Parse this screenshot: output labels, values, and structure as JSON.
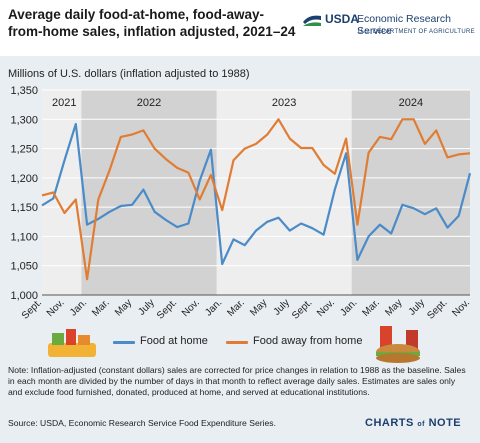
{
  "header": {
    "title": "Average daily food-at-home, food-away-from-home sales, inflation adjusted, 2021–24",
    "logo_usda": "USDA",
    "logo_ers": "Economic Research Service",
    "logo_dept": "U.S. DEPARTMENT OF AGRICULTURE"
  },
  "chart_data": {
    "type": "line",
    "ylabel": "Millions of U.S. dollars (inflation adjusted to 1988)",
    "ylim": [
      1000,
      1350
    ],
    "yticks": [
      "1,000",
      "1,050",
      "1,100",
      "1,150",
      "1,200",
      "1,250",
      "1,300",
      "1,350"
    ],
    "x_months": [
      "Sep 2021",
      "Oct 2021",
      "Nov 2021",
      "Dec 2021",
      "Jan 2022",
      "Feb 2022",
      "Mar 2022",
      "Apr 2022",
      "May 2022",
      "Jun 2022",
      "Jul 2022",
      "Aug 2022",
      "Sep 2022",
      "Oct 2022",
      "Nov 2022",
      "Dec 2022",
      "Jan 2023",
      "Feb 2023",
      "Mar 2023",
      "Apr 2023",
      "May 2023",
      "Jun 2023",
      "Jul 2023",
      "Aug 2023",
      "Sep 2023",
      "Oct 2023",
      "Nov 2023",
      "Dec 2023",
      "Jan 2024",
      "Feb 2024",
      "Mar 2024",
      "Apr 2024",
      "May 2024",
      "Jun 2024",
      "Jul 2024",
      "Aug 2024",
      "Sep 2024",
      "Oct 2024",
      "Nov 2024"
    ],
    "tick_labels": [
      "Sept.",
      "Nov.",
      "Jan.",
      "Mar.",
      "May",
      "July",
      "Sept.",
      "Nov.",
      "Jan.",
      "Mar.",
      "May",
      "July",
      "Sept.",
      "Nov.",
      "Jan.",
      "Mar.",
      "May",
      "July",
      "Sept.",
      "Nov."
    ],
    "year_bands": [
      {
        "label": "2021",
        "shaded": false
      },
      {
        "label": "2022",
        "shaded": true
      },
      {
        "label": "2023",
        "shaded": false
      },
      {
        "label": "2024",
        "shaded": true
      }
    ],
    "series": [
      {
        "name": "Food at home",
        "color": "#4b8bc7",
        "values": [
          1153,
          1165,
          1230,
          1292,
          1120,
          1130,
          1142,
          1152,
          1154,
          1180,
          1142,
          1128,
          1116,
          1122,
          1195,
          1248,
          1053,
          1095,
          1085,
          1110,
          1125,
          1132,
          1110,
          1122,
          1114,
          1103,
          1180,
          1242,
          1060,
          1100,
          1120,
          1105,
          1154,
          1148,
          1138,
          1148,
          1115,
          1135,
          1208
        ]
      },
      {
        "name": "Food away from home",
        "color": "#e07d35",
        "values": [
          1170,
          1175,
          1140,
          1163,
          1027,
          1163,
          1213,
          1270,
          1274,
          1281,
          1250,
          1232,
          1217,
          1209,
          1163,
          1205,
          1145,
          1230,
          1250,
          1258,
          1274,
          1300,
          1267,
          1251,
          1251,
          1222,
          1207,
          1267,
          1120,
          1243,
          1270,
          1266,
          1300,
          1300,
          1258,
          1281,
          1235,
          1240,
          1242
        ]
      }
    ],
    "grid": "horizontal"
  },
  "note": "Note: Inflation-adjusted (constant dollars) sales are corrected for price changes in relation to 1988 as the baseline. Sales in each month are divided by the number of days in that month to reflect average daily sales. Estimates are sales only and exclude food furnished, donated, produced at home, and served at educational institutions.",
  "source": "Source: USDA, Economic Research Service Food Expenditure Series.",
  "footer": {
    "charts": "CHARTS",
    "of": "of",
    "note": "NOTE"
  },
  "colors": {
    "background": "#e9eef2",
    "band_shade": "#d2d2d2",
    "plot_bg": "#eeeeee"
  },
  "icons": [
    "usda-logo-icon",
    "grocery-bag-icon",
    "fast-food-icon"
  ]
}
